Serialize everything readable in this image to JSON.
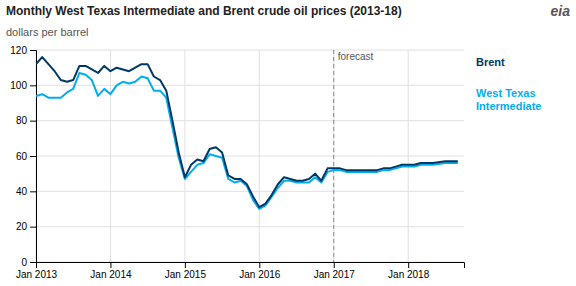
{
  "chart_data": {
    "type": "line",
    "title": "Monthly West Texas Intermediate and Brent crude oil prices (2013-18)",
    "ylabel": "dollars per barrel",
    "x": [
      2013.0,
      2013.083,
      2013.167,
      2013.25,
      2013.333,
      2013.417,
      2013.5,
      2013.583,
      2013.667,
      2013.75,
      2013.833,
      2013.917,
      2014.0,
      2014.083,
      2014.167,
      2014.25,
      2014.333,
      2014.417,
      2014.5,
      2014.583,
      2014.667,
      2014.75,
      2014.833,
      2014.917,
      2015.0,
      2015.083,
      2015.167,
      2015.25,
      2015.333,
      2015.417,
      2015.5,
      2015.583,
      2015.667,
      2015.75,
      2015.833,
      2015.917,
      2016.0,
      2016.083,
      2016.167,
      2016.25,
      2016.333,
      2016.417,
      2016.5,
      2016.583,
      2016.667,
      2016.75,
      2016.833,
      2016.917,
      2017.0,
      2017.083,
      2017.167,
      2017.25,
      2017.333,
      2017.417,
      2017.5,
      2017.583,
      2017.667,
      2017.75,
      2017.833,
      2017.917,
      2018.0,
      2018.083,
      2018.167,
      2018.25,
      2018.333,
      2018.5,
      2018.667
    ],
    "series": [
      {
        "name": "West Texas\nIntermediate",
        "color": "#00aeef",
        "values": [
          94,
          95,
          93,
          93,
          93,
          96,
          98,
          107,
          106,
          103,
          94,
          98,
          95,
          100,
          102,
          101,
          102,
          105,
          104,
          97,
          97,
          93,
          76,
          59,
          47,
          51,
          55,
          56,
          61,
          60,
          59,
          47,
          45,
          46,
          43,
          35,
          30,
          32,
          37,
          42,
          46,
          46,
          45,
          45,
          45,
          48,
          45,
          51,
          52,
          52,
          51,
          51,
          51,
          51,
          51,
          51,
          52,
          52,
          53,
          54,
          54,
          54,
          55,
          55,
          55,
          56,
          56
        ]
      },
      {
        "name": "Brent",
        "color": "#003865",
        "values": [
          112,
          116,
          112,
          108,
          103,
          102,
          103,
          111,
          111,
          109,
          107,
          111,
          108,
          110,
          109,
          108,
          110,
          112,
          112,
          105,
          103,
          97,
          80,
          62,
          48,
          55,
          58,
          57,
          64,
          65,
          62,
          49,
          47,
          47,
          44,
          37,
          31,
          33,
          38,
          44,
          48,
          47,
          46,
          46,
          47,
          50,
          46,
          53,
          53,
          53,
          52,
          52,
          52,
          52,
          52,
          52,
          53,
          53,
          54,
          55,
          55,
          55,
          56,
          56,
          56,
          57,
          57
        ]
      }
    ],
    "xlim": [
      2013.0,
      2018.75
    ],
    "xticks": [
      {
        "value": 2013.0,
        "label": "Jan 2013"
      },
      {
        "value": 2014.0,
        "label": "Jan 2014"
      },
      {
        "value": 2015.0,
        "label": "Jan 2015"
      },
      {
        "value": 2016.0,
        "label": "Jan 2016"
      },
      {
        "value": 2017.0,
        "label": "Jan 2017"
      },
      {
        "value": 2018.0,
        "label": "Jan 2018"
      }
    ],
    "ylim": [
      0,
      120
    ],
    "yticks": [
      0,
      20,
      40,
      60,
      80,
      100,
      120
    ],
    "grid": true,
    "legend": "right",
    "annotations": [
      {
        "text": "forecast",
        "x": 2017.0
      },
      {
        "text": "eia"
      }
    ]
  }
}
